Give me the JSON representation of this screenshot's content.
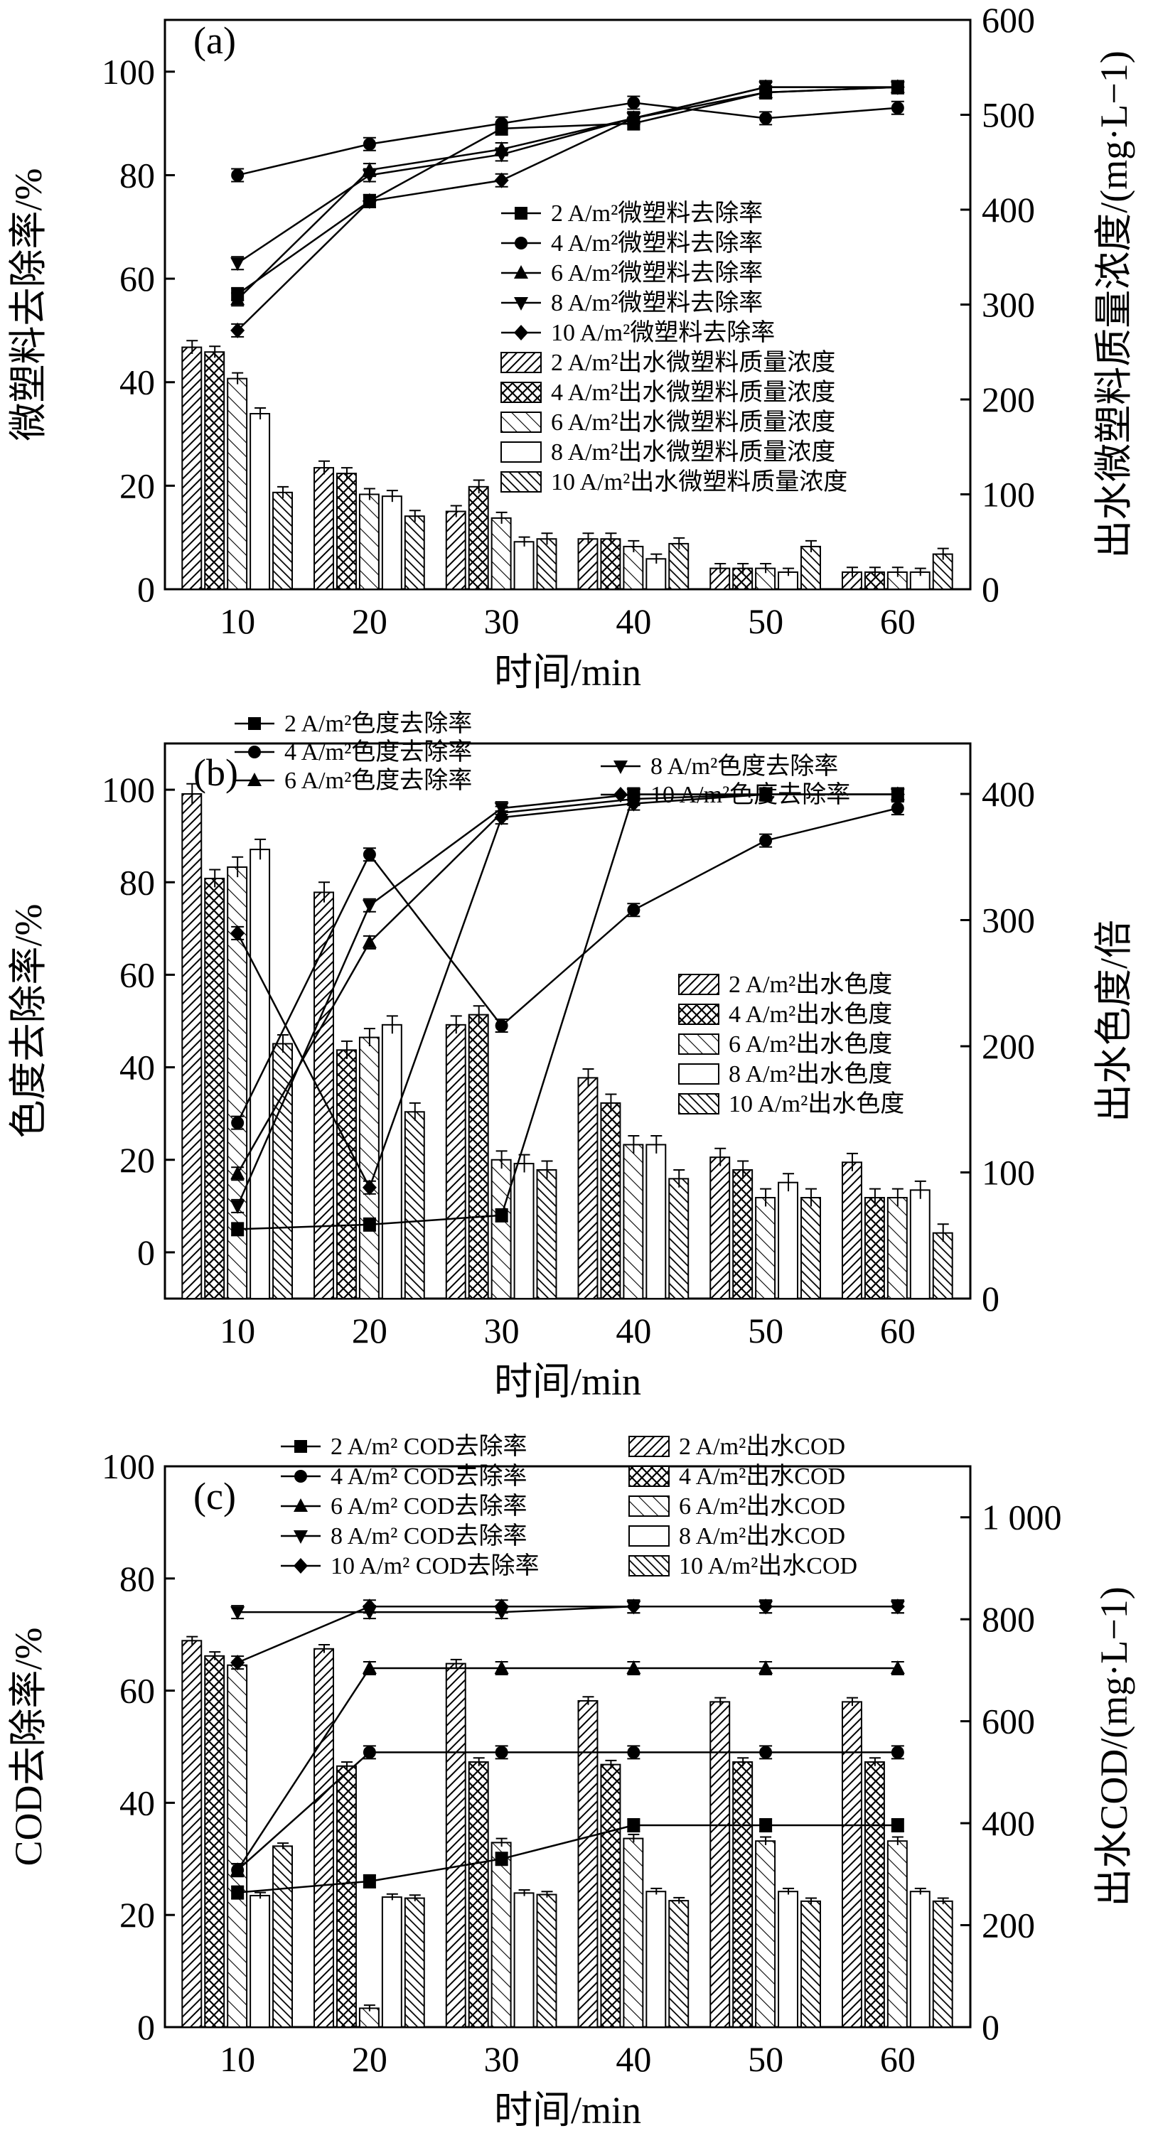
{
  "chart_data": [
    {
      "type": "bar",
      "panel": "(a)",
      "xlabel": "时间/min",
      "ylabel": "微塑料去除率/%",
      "y2label": "出水微塑料质量浓度/(mg·L−1)",
      "categories": [
        "10",
        "20",
        "30",
        "40",
        "50",
        "60"
      ],
      "ylim": [
        0,
        110
      ],
      "y2lim": [
        0,
        600
      ],
      "yticks": [
        "0",
        "20",
        "40",
        "60",
        "80",
        "100"
      ],
      "y2ticks": [
        "0",
        "100",
        "200",
        "300",
        "400",
        "500",
        "600"
      ],
      "line_series": [
        {
          "name": "2 A/m²微塑料去除率",
          "marker": "square",
          "values": [
            57,
            75,
            89,
            90,
            96,
            97
          ]
        },
        {
          "name": "4 A/m²微塑料去除率",
          "marker": "circle",
          "values": [
            80,
            86,
            90,
            94,
            91,
            93
          ]
        },
        {
          "name": "6 A/m²微塑料去除率",
          "marker": "triangle-up",
          "values": [
            56,
            81,
            85,
            91,
            96,
            97
          ]
        },
        {
          "name": "8 A/m²微塑料去除率",
          "marker": "triangle-down",
          "values": [
            63,
            80,
            84,
            91,
            97,
            97
          ]
        },
        {
          "name": "10 A/m²微塑料去除率",
          "marker": "diamond",
          "values": [
            50,
            75,
            79,
            91,
            97,
            97
          ]
        }
      ],
      "bar_series": [
        {
          "name": "2 A/m²出水微塑料质量浓度",
          "pattern": "diag-dense",
          "values": [
            255,
            128,
            82,
            53,
            22,
            18
          ],
          "errors": [
            7,
            7,
            6,
            6,
            5,
            5
          ]
        },
        {
          "name": "4 A/m²出水微塑料质量浓度",
          "pattern": "cross",
          "values": [
            250,
            122,
            108,
            53,
            22,
            18
          ],
          "errors": [
            6,
            6,
            7,
            6,
            5,
            5
          ]
        },
        {
          "name": "6 A/m²出水微塑料质量浓度",
          "pattern": "back-diag",
          "values": [
            222,
            100,
            75,
            45,
            22,
            18
          ],
          "errors": [
            6,
            6,
            6,
            6,
            5,
            5
          ]
        },
        {
          "name": "8 A/m²出水微塑料质量浓度",
          "pattern": "empty",
          "values": [
            185,
            98,
            50,
            32,
            18,
            18
          ],
          "errors": [
            6,
            6,
            5,
            5,
            4,
            4
          ]
        },
        {
          "name": "10 A/m²出水微塑料质量浓度",
          "pattern": "back-diag-dense",
          "values": [
            102,
            77,
            53,
            48,
            45,
            37
          ],
          "errors": [
            6,
            6,
            6,
            6,
            6,
            6
          ]
        }
      ]
    },
    {
      "type": "bar",
      "panel": "(b)",
      "xlabel": "时间/min",
      "ylabel": "色度去除率/%",
      "y2label": "出水色度/倍",
      "categories": [
        "10",
        "20",
        "30",
        "40",
        "50",
        "60"
      ],
      "ylim": [
        -10,
        110
      ],
      "y2lim": [
        0,
        440
      ],
      "yticks": [
        "0",
        "20",
        "40",
        "60",
        "80",
        "100"
      ],
      "y2ticks": [
        "0",
        "100",
        "200",
        "300",
        "400"
      ],
      "line_series": [
        {
          "name": "2 A/m²色度去除率",
          "marker": "square",
          "values": [
            5,
            6,
            8,
            99,
            99,
            99
          ]
        },
        {
          "name": "4 A/m²色度去除率",
          "marker": "circle",
          "values": [
            28,
            86,
            49,
            74,
            89,
            96
          ]
        },
        {
          "name": "6 A/m²色度去除率",
          "marker": "triangle-up",
          "values": [
            17,
            67,
            95,
            98,
            99,
            99
          ]
        },
        {
          "name": "8 A/m²色度去除率",
          "marker": "triangle-down",
          "values": [
            10,
            75,
            96,
            99,
            99,
            99
          ]
        },
        {
          "name": "10 A/m²色度去除率",
          "marker": "diamond",
          "values": [
            69,
            14,
            94,
            97,
            99,
            99
          ]
        }
      ],
      "bar_series": [
        {
          "name": "2 A/m²出水色度",
          "pattern": "diag-dense",
          "values": [
            400,
            322,
            217,
            175,
            112,
            108
          ],
          "errors": [
            8,
            8,
            7,
            7,
            7,
            7
          ]
        },
        {
          "name": "4 A/m²出水色度",
          "pattern": "cross",
          "values": [
            333,
            197,
            225,
            155,
            102,
            80
          ],
          "errors": [
            7,
            7,
            7,
            7,
            7,
            7
          ]
        },
        {
          "name": "6 A/m²出水色度",
          "pattern": "back-diag",
          "values": [
            342,
            207,
            110,
            122,
            80,
            80
          ],
          "errors": [
            8,
            7,
            7,
            7,
            7,
            7
          ]
        },
        {
          "name": "8 A/m²出水色度",
          "pattern": "empty",
          "values": [
            356,
            217,
            107,
            122,
            92,
            86
          ],
          "errors": [
            8,
            7,
            7,
            7,
            7,
            7
          ]
        },
        {
          "name": "10 A/m²出水色度",
          "pattern": "back-diag-dense",
          "values": [
            202,
            148,
            102,
            95,
            80,
            52
          ],
          "errors": [
            7,
            7,
            7,
            7,
            7,
            7
          ]
        }
      ]
    },
    {
      "type": "bar",
      "panel": "(c)",
      "xlabel": "时间/min",
      "ylabel": "COD去除率/%",
      "y2label": "出水COD/(mg·L−1)",
      "categories": [
        "10",
        "20",
        "30",
        "40",
        "50",
        "60"
      ],
      "ylim": [
        0,
        100
      ],
      "y2lim": [
        0,
        1100
      ],
      "yticks": [
        "0",
        "20",
        "40",
        "60",
        "80",
        "100"
      ],
      "y2ticks": [
        "0",
        "200",
        "400",
        "600",
        "800",
        "1 000"
      ],
      "line_series": [
        {
          "name": "2 A/m² COD去除率",
          "marker": "square",
          "values": [
            24,
            26,
            30,
            36,
            36,
            36
          ]
        },
        {
          "name": "4 A/m² COD去除率",
          "marker": "circle",
          "values": [
            28,
            49,
            49,
            49,
            49,
            49
          ]
        },
        {
          "name": "6 A/m² COD去除率",
          "marker": "triangle-up",
          "values": [
            28,
            64,
            64,
            64,
            64,
            64
          ]
        },
        {
          "name": "8 A/m² COD去除率",
          "marker": "triangle-down",
          "values": [
            74,
            74,
            74,
            75,
            75,
            75
          ]
        },
        {
          "name": "10 A/m² COD去除率",
          "marker": "diamond",
          "values": [
            65,
            75,
            75,
            75,
            75,
            75
          ]
        }
      ],
      "bar_series": [
        {
          "name": "2 A/m²出水COD",
          "pattern": "diag-dense",
          "values": [
            758,
            742,
            713,
            640,
            638,
            638
          ],
          "errors": [
            8,
            8,
            8,
            8,
            8,
            8
          ]
        },
        {
          "name": "4 A/m²出水COD",
          "pattern": "cross",
          "values": [
            728,
            512,
            520,
            515,
            520,
            520
          ],
          "errors": [
            8,
            8,
            8,
            8,
            8,
            8
          ]
        },
        {
          "name": "6 A/m²出水COD",
          "pattern": "back-diag",
          "values": [
            710,
            37,
            362,
            370,
            365,
            365
          ],
          "errors": [
            8,
            6,
            8,
            8,
            8,
            8
          ]
        },
        {
          "name": "8 A/m²出水COD",
          "pattern": "empty",
          "values": [
            258,
            255,
            263,
            266,
            266,
            266
          ],
          "errors": [
            6,
            6,
            6,
            6,
            6,
            6
          ]
        },
        {
          "name": "10 A/m²出水COD",
          "pattern": "back-diag-dense",
          "values": [
            355,
            253,
            260,
            248,
            247,
            247
          ],
          "errors": [
            6,
            6,
            6,
            6,
            6,
            6
          ]
        }
      ]
    }
  ]
}
